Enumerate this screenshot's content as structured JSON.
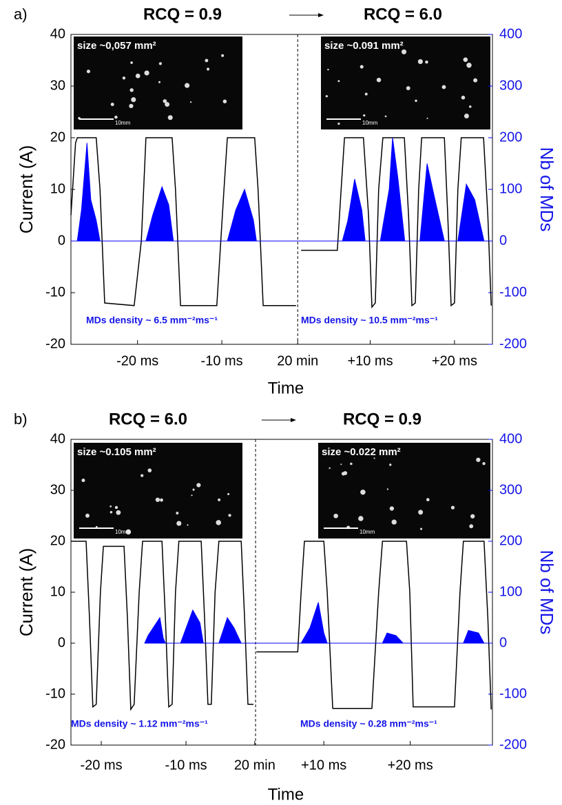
{
  "chart_data": [
    {
      "type": "line",
      "panel_label": "a)",
      "title_left": "RCQ = 0.9",
      "title_right": "RCQ = 6.0",
      "xlabel": "Time",
      "ylabel": "Current (A)",
      "y2label": "Nb of MDs",
      "xlim": [
        0,
        100
      ],
      "xticks": [
        {
          "value": 15.8,
          "label": "-20 ms"
        },
        {
          "value": 35.8,
          "label": "-10 ms"
        },
        {
          "value": 53.8,
          "label": "20 min"
        },
        {
          "value": 71,
          "label": "+10 ms"
        },
        {
          "value": 91,
          "label": "+20 ms"
        }
      ],
      "ylim": [
        -20,
        40
      ],
      "yticks": [
        -20,
        -10,
        0,
        10,
        20,
        30,
        40
      ],
      "y2lim": [
        -200,
        400
      ],
      "y2ticks": [
        -200,
        -100,
        0,
        100,
        200,
        300,
        400
      ],
      "divider_x": 53.8,
      "series": [
        {
          "color": "#000000",
          "x": [
            0,
            1.1,
            1.5,
            6.0,
            6.9,
            8.0,
            15.0,
            16.7,
            17.8,
            24.0,
            24.8,
            26.0,
            34.6,
            36.3,
            37.1,
            43.6,
            44.4,
            45.6,
            53.4,
            54.0,
            54.6,
            63.2,
            64.1,
            64.9,
            69.4,
            70.6,
            71.4,
            72.2,
            73.0,
            74.0,
            79.1,
            80.1,
            80.9,
            81.7,
            82.5,
            83.2,
            88.6,
            89.4,
            90.2,
            91.0,
            91.8,
            92.6,
            97.9,
            98.9,
            99.7
          ],
          "values": [
            5,
            19,
            20,
            20,
            10,
            -12,
            -12.5,
            0,
            20,
            20,
            10,
            -12.5,
            -12.5,
            10,
            20,
            20,
            10,
            -12.5,
            -12.5,
            null,
            -1.8,
            -1.8,
            10,
            20,
            20,
            5,
            -12.8,
            -12,
            10,
            20,
            20,
            5,
            -12.5,
            -12,
            10,
            20,
            20,
            5,
            -12.5,
            -12,
            10,
            20,
            20,
            5,
            -12.5
          ]
        },
        {
          "color": "#0000ff",
          "axis": "y2",
          "fill": true,
          "x": [
            0,
            1.5,
            2.5,
            3.8,
            4.7,
            6.0,
            6.9,
            17.8,
            19.4,
            21.6,
            23.2,
            24.3,
            37.1,
            39.1,
            41.2,
            43.3,
            44.0,
            64.4,
            65.7,
            67.3,
            69.0,
            69.8,
            73.4,
            75.5,
            76.3,
            77.6,
            79.2,
            82.8,
            84.5,
            86.1,
            88.6,
            91.8,
            93.8,
            95.8,
            98.0,
            100
          ],
          "values": [
            0,
            0,
            60,
            190,
            80,
            40,
            0,
            0,
            50,
            105,
            70,
            0,
            0,
            60,
            100,
            40,
            0,
            0,
            40,
            120,
            60,
            0,
            0,
            100,
            200,
            120,
            0,
            0,
            150,
            90,
            0,
            0,
            110,
            80,
            0,
            0
          ]
        }
      ],
      "insets": [
        {
          "label": "size ~0,057 mm²",
          "scale": "10mm"
        },
        {
          "label": "size ~0.091 mm²",
          "scale": "10mm"
        }
      ],
      "annotations": [
        "MDs density ~ 6.5 mm⁻²ms⁻¹",
        "MDs density ~ 10.5 mm⁻²ms⁻¹"
      ]
    },
    {
      "type": "line",
      "panel_label": "b)",
      "title_left": "RCQ = 6.0",
      "title_right": "RCQ = 0.9",
      "xlabel": "Time",
      "ylabel": "Current (A)",
      "y2label": "Nb of MDs",
      "xlim": [
        0,
        100
      ],
      "xticks": [
        {
          "value": 7.2,
          "label": "-20 ms"
        },
        {
          "value": 27.3,
          "label": "-10 ms"
        },
        {
          "value": 43.6,
          "label": "20 min"
        },
        {
          "value": 60.0,
          "label": "+10 ms"
        },
        {
          "value": 80.5,
          "label": "+20 ms"
        }
      ],
      "ylim": [
        -20,
        40
      ],
      "yticks": [
        -20,
        -10,
        0,
        10,
        20,
        30,
        40
      ],
      "y2lim": [
        -200,
        400
      ],
      "y2ticks": [
        -200,
        -100,
        0,
        100,
        200,
        300,
        400
      ],
      "divider_x": 43.8,
      "series": [
        {
          "color": "#000000",
          "x": [
            0,
            3.6,
            4.4,
            5.2,
            6.0,
            7.0,
            7.7,
            12.6,
            13.4,
            14.2,
            15.0,
            16.2,
            17.0,
            21.6,
            22.4,
            23.2,
            24.0,
            24.8,
            25.6,
            30.9,
            31.7,
            32.5,
            33.3,
            34.2,
            35.1,
            40.4,
            41.2,
            42.0,
            43.3,
            43.8,
            44.0,
            53.8,
            54.6,
            55.4,
            60.0,
            60.8,
            62.1,
            71.4,
            73.0,
            73.9,
            79.6,
            80.4,
            81.2,
            91.0,
            92.3,
            93.1,
            98.0,
            98.9,
            99.7
          ],
          "values": [
            20,
            20,
            5,
            -12.5,
            -12,
            10,
            19,
            19,
            5,
            -13,
            -12,
            10,
            20,
            20,
            5,
            -12.5,
            -12,
            10,
            20,
            20,
            5,
            -12,
            -12,
            10,
            20,
            20,
            5,
            -12,
            -12,
            null,
            -1.7,
            -1.7,
            10,
            20,
            20,
            10,
            -12.8,
            -12.8,
            10,
            20,
            20,
            10,
            -12.5,
            -12.5,
            10,
            20,
            20,
            5,
            -13
          ]
        },
        {
          "color": "#0000ff",
          "axis": "y2",
          "fill": true,
          "x": [
            17.5,
            18.3,
            21.1,
            21.9,
            22.4,
            26.0,
            28.9,
            30.6,
            31.4,
            35.1,
            37.1,
            38.7,
            40.4,
            54.6,
            56.7,
            58.7,
            60.0,
            60.8,
            73.9,
            75.0,
            77.1,
            78.8,
            93.1,
            94.3,
            96.7,
            98.0,
            100
          ],
          "values": [
            0,
            15,
            50,
            10,
            0,
            0,
            65,
            40,
            0,
            0,
            50,
            30,
            0,
            0,
            30,
            80,
            20,
            0,
            0,
            20,
            15,
            0,
            0,
            25,
            20,
            0,
            0
          ]
        }
      ],
      "insets": [
        {
          "label": "size ~0.105 mm²",
          "scale": "10mm"
        },
        {
          "label": "size ~0.022 mm²",
          "scale": "10mm"
        }
      ],
      "annotations": [
        "MDs density ~ 1.12 mm⁻²ms⁻¹",
        "MDs density ~ 0.28 mm⁻²ms⁻¹"
      ]
    }
  ]
}
